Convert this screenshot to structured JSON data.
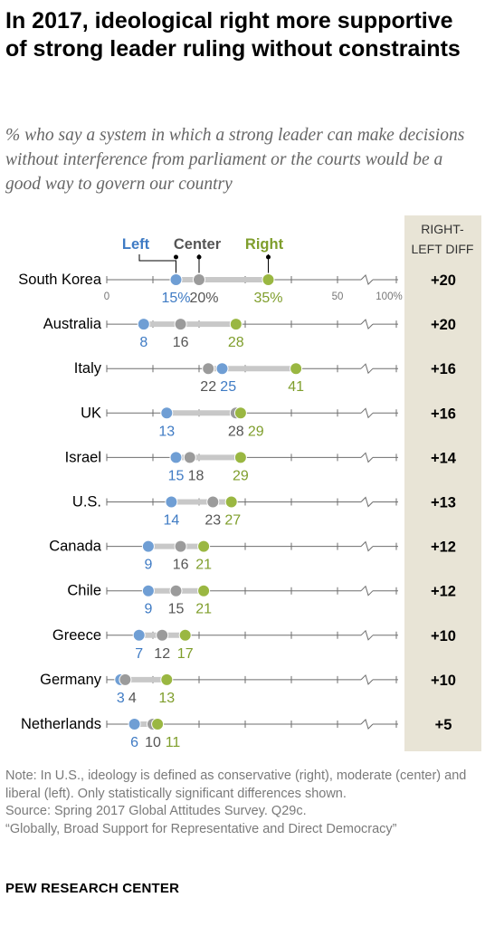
{
  "header": {
    "title": "In 2017, ideological right more supportive of strong leader ruling without constraints",
    "subtitle": "% who say a system in which a strong leader can make decisions without interference from parliament or the courts would be a good way to govern our country"
  },
  "colors": {
    "left": "#6f9ed4",
    "center": "#9b9b9b",
    "right": "#9ab742",
    "diff_panel": "#e8e4d6",
    "axis": "#6e6e6e"
  },
  "chart_data": {
    "type": "dot",
    "title": "In 2017, ideological right more supportive of strong leader ruling without constraints",
    "legend": [
      "Left",
      "Center",
      "Right"
    ],
    "diff_header": "RIGHT-LEFT DIFF",
    "axis_ticks": [
      "0",
      "50",
      "100%"
    ],
    "xlim": [
      0,
      100
    ],
    "axis_break": "between 50 and 100",
    "categories": [
      "South Korea",
      "Australia",
      "Italy",
      "UK",
      "Israel",
      "U.S.",
      "Canada",
      "Chile",
      "Greece",
      "Germany",
      "Netherlands"
    ],
    "series": [
      {
        "name": "Left",
        "values": [
          15,
          8,
          25,
          13,
          15,
          14,
          9,
          9,
          7,
          3,
          6
        ]
      },
      {
        "name": "Center",
        "values": [
          20,
          16,
          22,
          28,
          18,
          23,
          16,
          15,
          12,
          4,
          10
        ]
      },
      {
        "name": "Right",
        "values": [
          35,
          28,
          41,
          29,
          29,
          27,
          21,
          21,
          17,
          13,
          11
        ]
      }
    ],
    "value_labels": {
      "Left": [
        "15%",
        "8",
        "25",
        "13",
        "15",
        "14",
        "9",
        "9",
        "7",
        "3",
        "6"
      ],
      "Center": [
        "20%",
        "16",
        "22",
        "28",
        "18",
        "23",
        "16",
        "15",
        "12",
        "4",
        "10"
      ],
      "Right": [
        "35%",
        "28",
        "41",
        "29",
        "29",
        "27",
        "21",
        "21",
        "17",
        "13",
        "11"
      ]
    },
    "diffs": [
      "+20",
      "+20",
      "+16",
      "+16",
      "+14",
      "+13",
      "+12",
      "+12",
      "+10",
      "+10",
      "+5"
    ]
  },
  "notes": {
    "note": "Note: In U.S., ideology is defined as conservative (right), moderate (center) and liberal (left). Only statistically significant differences shown.",
    "source": "Source: Spring 2017 Global Attitudes Survey. Q29c.",
    "report": "“Globally, Broad Support for Representative and Direct Democracy”"
  },
  "footer": {
    "brand": "PEW RESEARCH CENTER"
  }
}
